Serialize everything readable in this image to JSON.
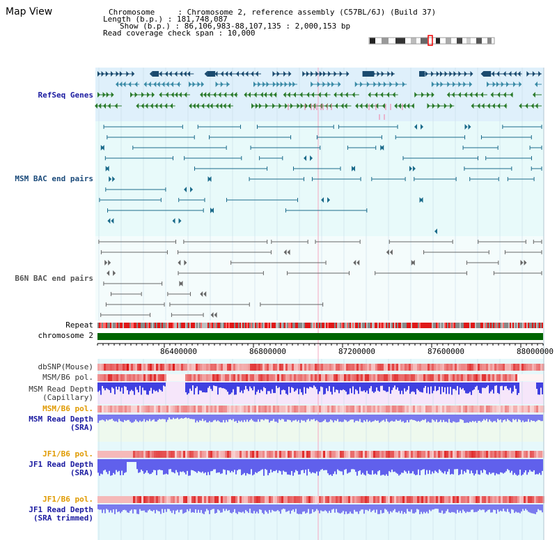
{
  "header": {
    "title": "Map View",
    "chromosome": "Chromosome     : Chromosome 2, reference assembly (C57BL/6J) (Build 37)",
    "length": "Length (b.p.) : 181,748,087",
    "show": "Show (b.p.) : 86,106,983-88,107,135 : 2,000,153 bp",
    "coverage": "Read coverage check span : 10,000"
  },
  "tracks": {
    "refseq": "RefSeq Genes",
    "msm_bac": "MSM BAC end pairs",
    "b6n_bac": "B6N BAC end pairs",
    "repeat": "Repeat",
    "chromosome": "chromosome 2",
    "dbsnp": "dbSNP(Mouse)",
    "msm_b6_pol1": "MSM/B6 pol.",
    "msm_depth_cap_1": "MSM Read Depth",
    "msm_depth_cap_2": "(Capillary)",
    "msm_b6_pol2": "MSM/B6 pol.",
    "msm_depth_sra_1": "MSM Read Depth",
    "msm_depth_sra_2": "(SRA)",
    "jf1_b6_pol1": "JF1/B6 pol.",
    "jf1_depth_sra_1": "JF1 Read Depth",
    "jf1_depth_sra_2": "(SRA)",
    "jf1_b6_pol2": "JF1/B6 pol.",
    "jf1_depth_trim_1": "JF1 Read Depth",
    "jf1_depth_trim_2": "(SRA trimmed)"
  },
  "axis": {
    "range": [
      86106983,
      88107135
    ],
    "ticks": [
      "86400000",
      "86800000",
      "87200000",
      "87600000",
      "88000000"
    ]
  },
  "colors": {
    "refseq_dark": "#1a4a6e",
    "refseq_teal": "#3a8aa6",
    "refseq_green": "#2a7a2a",
    "bac_teal": "#1a6a8a",
    "bac_grey": "#666666",
    "chrom_green": "#006400",
    "depth_blue": "#5050e0",
    "pol_red": "#e02020"
  }
}
